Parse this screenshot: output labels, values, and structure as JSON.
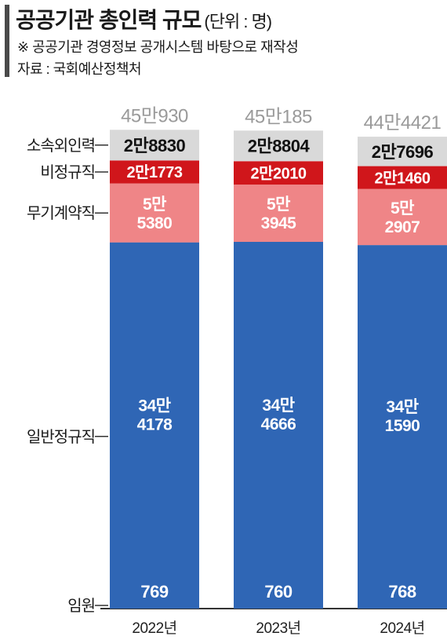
{
  "header": {
    "title": "공공기관 총인력 규모",
    "unit": "(단위 : 명)",
    "note": "※ 공공기관 경영정보 공개시스템 바탕으로 재작성",
    "source": "자료 : 국회예산정책처"
  },
  "chart_data": {
    "type": "bar",
    "stacked": true,
    "categories": [
      "2022년",
      "2023년",
      "2024년"
    ],
    "totals": [
      "45만930",
      "45만185",
      "44만4421"
    ],
    "total_values": [
      450930,
      450185,
      444421
    ],
    "series": [
      {
        "name": "임원",
        "values": [
          769,
          760,
          768
        ],
        "labels": [
          "769",
          "760",
          "768"
        ],
        "color": "#2f66b5"
      },
      {
        "name": "일반정규직",
        "values": [
          344178,
          344666,
          341590
        ],
        "labels": [
          "34만\n4178",
          "34만\n4666",
          "34만\n1590"
        ],
        "color": "#2f66b5"
      },
      {
        "name": "무기계약직",
        "values": [
          55380,
          53945,
          52907
        ],
        "labels": [
          "5만\n5380",
          "5만\n3945",
          "5만\n2907"
        ],
        "color": "#ef8587"
      },
      {
        "name": "비정규직",
        "values": [
          21773,
          22010,
          21460
        ],
        "labels": [
          "2만1773",
          "2만2010",
          "2만1460"
        ],
        "color": "#d0161b"
      },
      {
        "name": "소속외인력",
        "values": [
          28830,
          28804,
          27696
        ],
        "labels": [
          "2만8830",
          "2만8804",
          "2만7696"
        ],
        "color": "#d9d9d9"
      }
    ],
    "grid": false,
    "legend": "left"
  }
}
